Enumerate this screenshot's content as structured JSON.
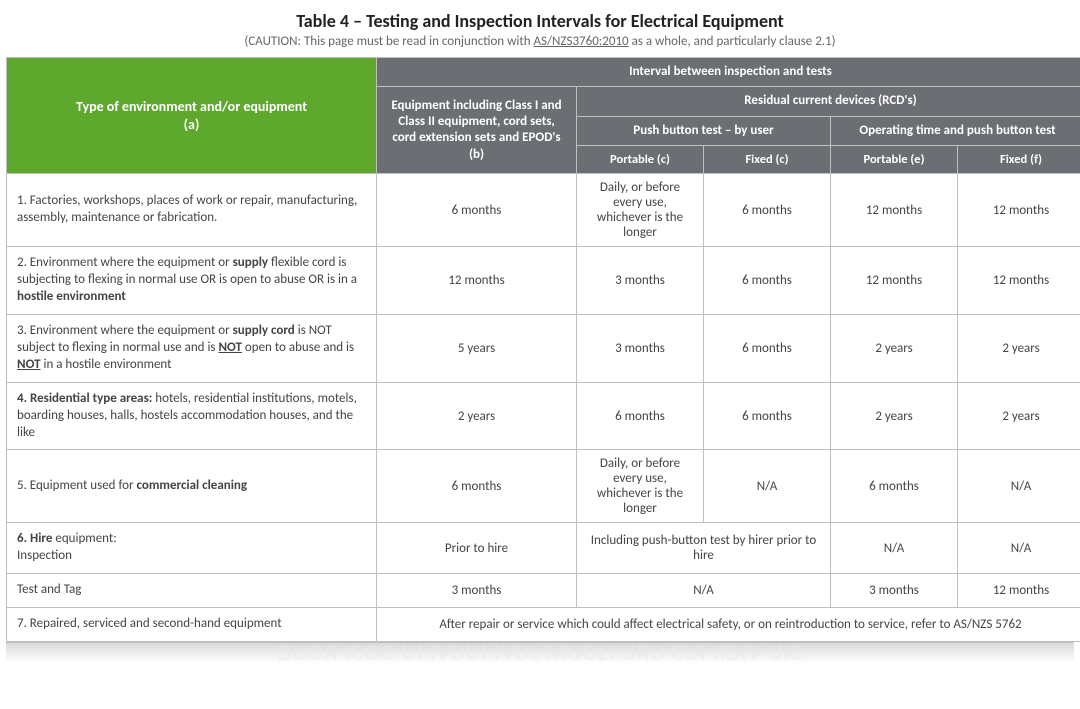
{
  "title": "Table 4 – Testing and Inspection Intervals for Electrical Equipment",
  "caution_prefix": "(CAUTION: This page must be read in conjunction with ",
  "caution_link": "AS/NZS3760:2010",
  "caution_suffix": " as a whole, and particularly clause 2.1)",
  "headers": {
    "env": "Type of environment and/or equipment\n(a)",
    "interval": "Interval between inspection and tests",
    "colB": "Equipment including Class I and Class II equipment, cord sets, cord extension sets and EPOD's\n(b)",
    "rcd": "Residual current devices (RCD's)",
    "push": "Push button test – by user",
    "op": "Operating time and push button test",
    "sub": {
      "portC": "Portable (c)",
      "fixC": "Fixed (c)",
      "portE": "Portable (e)",
      "fixF": "Fixed (f)"
    }
  },
  "rows": [
    {
      "env_html": "1. Factories, workshops, places of work or repair, manufacturing, assembly, maintenance or fabrication.",
      "b": "6 months",
      "pc": "Daily, or before every use, whichever is the longer",
      "fc": "6 months",
      "pe": "12 months",
      "ff": "12 months"
    },
    {
      "env_html": "2. Environment where the equipment or <b>supply</b> flexible cord is subjecting to flexing in normal use OR is open to abuse OR is in a <b>hostile environment</b>",
      "b": "12 months",
      "pc": "3 months",
      "fc": "6 months",
      "pe": "12 months",
      "ff": "12 months"
    },
    {
      "env_html": "3. Environment where the equipment or <b>supply cord</b> is NOT subject to flexing in normal use and is <b><u>NOT</u></b> open to abuse and is <b><u>NOT</u></b> in a hostile environment",
      "b": "5 years",
      "pc": "3 months",
      "fc": "6 months",
      "pe": "2 years",
      "ff": "2 years"
    },
    {
      "env_html": "<b>4. Residential type areas:</b> hotels, residential institutions, motels, boarding houses, halls, hostels accommodation houses, and the like",
      "b": "2 years",
      "pc": "6 months",
      "fc": "6 months",
      "pe": "2 years",
      "ff": "2 years"
    },
    {
      "env_html": "5. Equipment used for <b>commercial cleaning</b>",
      "b": "6 months",
      "pc": "Daily, or before every use, whichever is the longer",
      "fc": "N/A",
      "pe": "6 months",
      "ff": "N/A"
    }
  ],
  "row6a": {
    "env_html": "<b>6. Hire</b> equipment:<br>Inspection",
    "b": "Prior to hire",
    "merged": "Including push-button test by hirer prior to hire",
    "pe": "N/A",
    "ff": "N/A"
  },
  "row6b": {
    "env": "Test and Tag",
    "b": "3 months",
    "merged": "N/A",
    "pe": "3 months",
    "ff": "12 months"
  },
  "row7": {
    "env": "7. Repaired, serviced and second-hand equipment",
    "note": "After repair or service which could affect electrical safety, or on reintroduction to service, refer to AS/NZS 5762"
  },
  "colors": {
    "green": "#5ea82d",
    "grey": "#6b6e72",
    "border": "#bfbfbf",
    "text": "#444"
  }
}
